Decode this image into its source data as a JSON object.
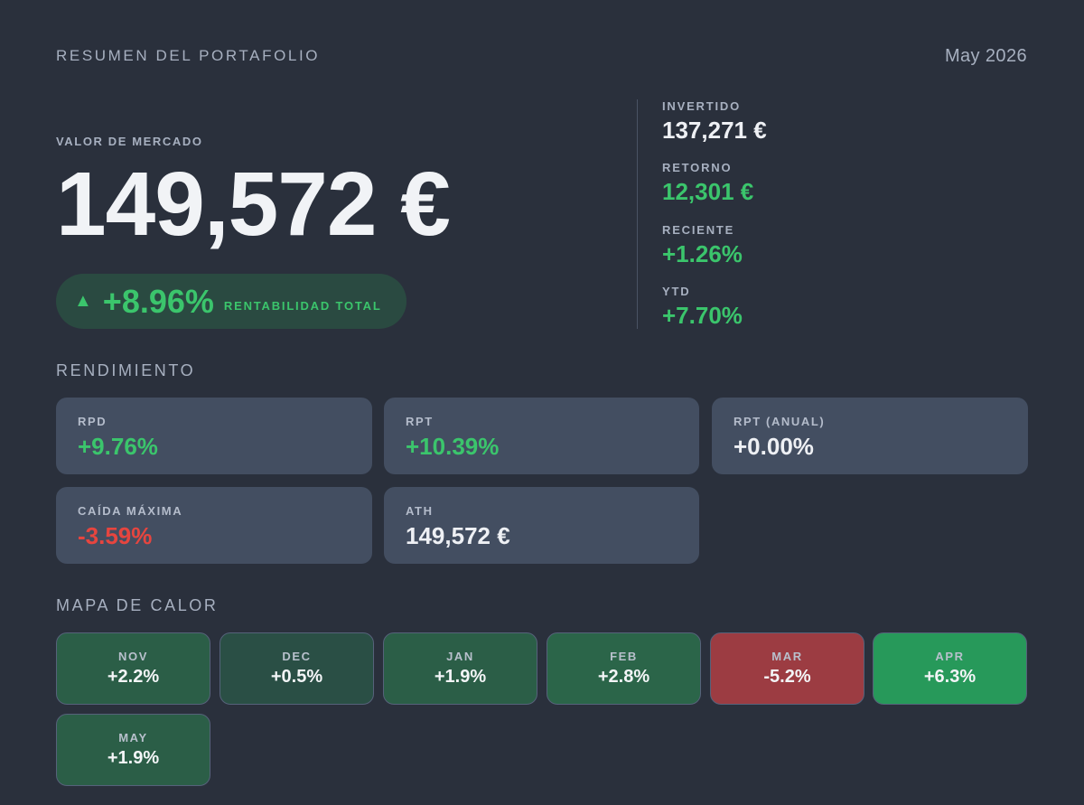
{
  "header": {
    "title": "RESUMEN DEL PORTAFOLIO",
    "date": "May 2026"
  },
  "market": {
    "label": "VALOR DE MERCADO",
    "value": "149,572 €",
    "total_arrow": "▲",
    "total_pct": "+8.96%",
    "total_label": "RENTABILIDAD TOTAL"
  },
  "stats": [
    {
      "label": "INVERTIDO",
      "value": "137,271 €",
      "tone": "neutral"
    },
    {
      "label": "RETORNO",
      "value": "12,301 €",
      "tone": "pos"
    },
    {
      "label": "RECIENTE",
      "value": "+1.26%",
      "tone": "pos"
    },
    {
      "label": "YTD",
      "value": "+7.70%",
      "tone": "pos"
    }
  ],
  "performance": {
    "title": "RENDIMIENTO",
    "cards": [
      {
        "label": "RPD",
        "value": "+9.76%",
        "tone": "pos"
      },
      {
        "label": "RPT",
        "value": "+10.39%",
        "tone": "pos"
      },
      {
        "label": "RPT (ANUAL)",
        "value": "+0.00%",
        "tone": "neutral"
      },
      {
        "label": "CAÍDA MÁXIMA",
        "value": "-3.59%",
        "tone": "neg"
      },
      {
        "label": "ATH",
        "value": "149,572 €",
        "tone": "neutral"
      }
    ]
  },
  "heatmap": {
    "title": "MAPA DE CALOR",
    "cells": [
      {
        "label": "NOV",
        "value": "+2.2%",
        "color": "#2b5e47"
      },
      {
        "label": "DEC",
        "value": "+0.5%",
        "color": "#2a4f45"
      },
      {
        "label": "JAN",
        "value": "+1.9%",
        "color": "#2b5e47"
      },
      {
        "label": "FEB",
        "value": "+2.8%",
        "color": "#2b6549"
      },
      {
        "label": "MAR",
        "value": "-5.2%",
        "color": "#9c3c42"
      },
      {
        "label": "APR",
        "value": "+6.3%",
        "color": "#27995a"
      },
      {
        "label": "MAY",
        "value": "+1.9%",
        "color": "#2b5e47"
      }
    ]
  }
}
